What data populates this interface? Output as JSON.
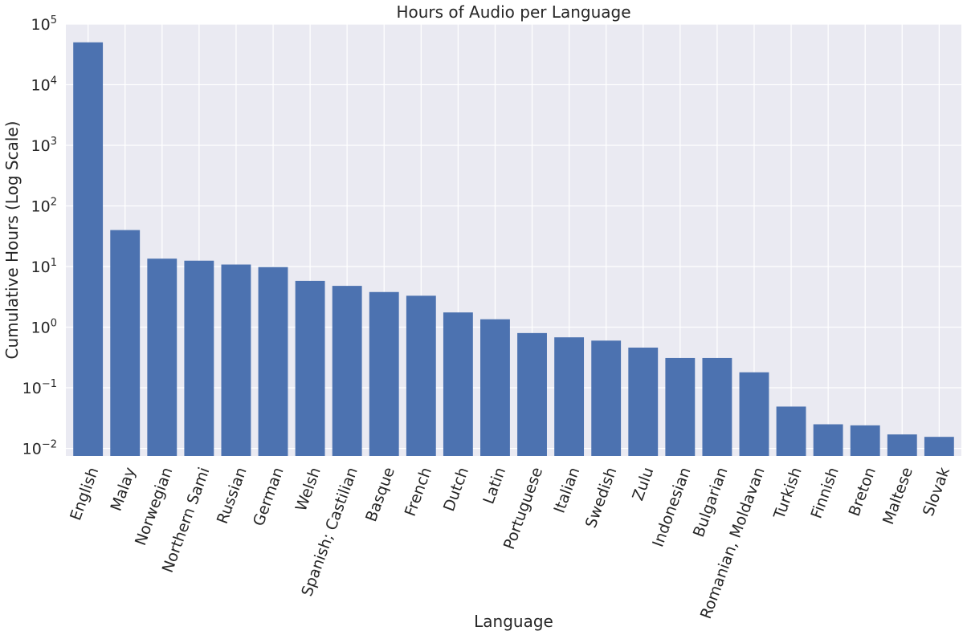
{
  "chart_data": {
    "type": "bar",
    "title": "Hours of Audio per Language",
    "xlabel": "Language",
    "ylabel": "Cumulative Hours (Log Scale)",
    "yscale": "log",
    "ylim": [
      0.0075,
      100000
    ],
    "y_ticks": [
      {
        "value": 0.01,
        "base": "10",
        "exp": "−2"
      },
      {
        "value": 0.1,
        "base": "10",
        "exp": "−1"
      },
      {
        "value": 1,
        "base": "10",
        "exp": "0"
      },
      {
        "value": 10,
        "base": "10",
        "exp": "1"
      },
      {
        "value": 100,
        "base": "10",
        "exp": "2"
      },
      {
        "value": 1000,
        "base": "10",
        "exp": "3"
      },
      {
        "value": 10000,
        "base": "10",
        "exp": "4"
      },
      {
        "value": 100000,
        "base": "10",
        "exp": "5"
      }
    ],
    "grid": true,
    "bar_color": "#4c72b0",
    "background_color": "#eaeaf2",
    "categories": [
      "English",
      "Malay",
      "Norwegian",
      "Northern Sami",
      "Russian",
      "German",
      "Welsh",
      "Spanish; Castilian",
      "Basque",
      "French",
      "Dutch",
      "Latin",
      "Portuguese",
      "Italian",
      "Swedish",
      "Zulu",
      "Indonesian",
      "Bulgarian",
      "Romanian, Moldavan",
      "Turkish",
      "Finnish",
      "Breton",
      "Maltese",
      "Slovak"
    ],
    "values": [
      50000,
      40,
      13.5,
      12.5,
      10.8,
      9.8,
      5.8,
      4.8,
      3.8,
      3.3,
      1.75,
      1.35,
      0.8,
      0.68,
      0.6,
      0.46,
      0.31,
      0.31,
      0.18,
      0.049,
      0.025,
      0.024,
      0.017,
      0.0155
    ]
  }
}
